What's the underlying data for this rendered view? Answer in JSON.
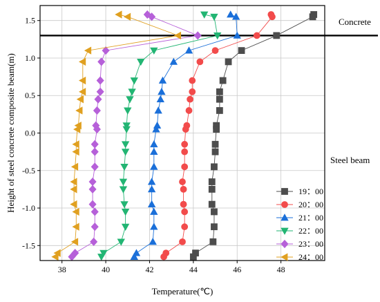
{
  "chart_data": {
    "type": "line",
    "xlabel": "Temperature(℃)",
    "ylabel": "Height of steel concrete composite beam(m)",
    "xlim": [
      37,
      50
    ],
    "ylim": [
      -1.7,
      1.7
    ],
    "xticks": [
      38,
      40,
      42,
      44,
      46,
      48
    ],
    "yticks": [
      -1.5,
      -1.0,
      -0.5,
      0.0,
      0.5,
      1.0,
      1.5
    ],
    "xtick_labels": [
      "38",
      "40",
      "42",
      "44",
      "46",
      "48"
    ],
    "ytick_labels": [
      "-1.5",
      "-1.0",
      "-0.5",
      "0.0",
      "0.5",
      "1.0",
      "1.5"
    ],
    "interface_y": 1.3,
    "grid": true,
    "legend_position": "bottom-right",
    "regions": {
      "upper": "Concrete",
      "lower": "Steel beam"
    },
    "y": [
      1.58,
      1.55,
      1.3,
      1.1,
      0.95,
      0.7,
      0.55,
      0.45,
      0.3,
      0.1,
      0.05,
      -0.15,
      -0.25,
      -0.45,
      -0.65,
      -0.75,
      -0.95,
      -1.05,
      -1.25,
      -1.45,
      -1.6,
      -1.65
    ],
    "series": [
      {
        "name": "19：00",
        "color": "#4d4d4d",
        "marker": "square",
        "values": [
          49.5,
          49.45,
          47.8,
          46.2,
          45.6,
          45.35,
          45.2,
          45.2,
          45.2,
          45.05,
          45.05,
          45.0,
          45.0,
          44.95,
          44.85,
          44.85,
          44.85,
          44.95,
          44.95,
          44.9,
          44.1,
          44.0
        ]
      },
      {
        "name": "20：00",
        "color": "#f24b4b",
        "marker": "circle",
        "values": [
          47.55,
          47.6,
          46.9,
          45.0,
          44.3,
          43.95,
          43.95,
          43.85,
          43.8,
          43.7,
          43.65,
          43.6,
          43.6,
          43.6,
          43.5,
          43.55,
          43.55,
          43.6,
          43.6,
          43.5,
          42.75,
          42.65
        ]
      },
      {
        "name": "21：00",
        "color": "#1a6fd9",
        "marker": "triangle-up",
        "values": [
          45.7,
          45.95,
          46.0,
          43.8,
          43.1,
          42.6,
          42.55,
          42.5,
          42.4,
          42.35,
          42.3,
          42.2,
          42.2,
          42.2,
          42.1,
          42.1,
          42.1,
          42.2,
          42.2,
          42.15,
          41.4,
          41.3
        ]
      },
      {
        "name": "22：00",
        "color": "#22b573",
        "marker": "triangle-down",
        "values": [
          44.5,
          44.95,
          45.1,
          42.2,
          41.6,
          41.3,
          41.2,
          41.1,
          41.0,
          40.95,
          40.95,
          40.9,
          40.9,
          40.85,
          40.8,
          40.8,
          40.85,
          40.9,
          40.9,
          40.7,
          39.9,
          39.8
        ]
      },
      {
        "name": "23：00",
        "color": "#b660d9",
        "marker": "diamond",
        "values": [
          41.9,
          42.1,
          44.2,
          40.0,
          39.8,
          39.75,
          39.75,
          39.65,
          39.6,
          39.55,
          39.6,
          39.5,
          39.5,
          39.5,
          39.4,
          39.4,
          39.4,
          39.5,
          39.5,
          39.45,
          38.6,
          38.45
        ]
      },
      {
        "name": "24：00",
        "color": "#e0a020",
        "marker": "triangle-left",
        "values": [
          40.6,
          41.0,
          43.3,
          39.2,
          38.95,
          38.95,
          38.95,
          38.85,
          38.8,
          38.75,
          38.7,
          38.65,
          38.65,
          38.6,
          38.55,
          38.55,
          38.55,
          38.65,
          38.65,
          38.6,
          37.8,
          37.7
        ]
      }
    ]
  }
}
